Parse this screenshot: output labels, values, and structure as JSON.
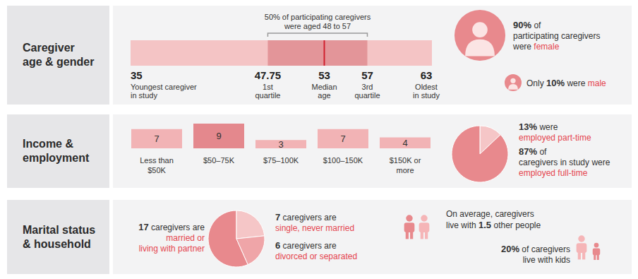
{
  "sections": [
    "Caregiver\nage & gender",
    "Income &\nemployment",
    "Marital status\n& household"
  ],
  "chart_data": [
    {
      "type": "boxplot",
      "values": [
        35,
        47.75,
        53,
        57,
        63
      ],
      "categories": [
        "Youngest caregiver\nin study",
        "1st\nquartile",
        "Median\nage",
        "3rd\nquartile",
        "Oldest\nin study"
      ],
      "annotation": "50% of participating caregivers\nwere aged 48 to 57",
      "xlim": [
        35,
        63
      ],
      "tick_labels": false,
      "colors": [
        "#f4c4c5",
        "#e39599",
        "#d0202e"
      ]
    },
    {
      "type": "pictogram",
      "categories": [
        "female",
        "male"
      ],
      "values": [
        90,
        10
      ],
      "value_labels": [
        "90%",
        "10%"
      ],
      "text_before": [
        null,
        "Only"
      ],
      "text_after": [
        "of\nparticipating caregivers\nwere",
        "were"
      ],
      "color": "#e8898d"
    },
    {
      "type": "bar",
      "categories": [
        "Less than\n$50K",
        "$50–75K",
        "$75–100K",
        "$100–150K",
        "$150K or\nmore"
      ],
      "values": [
        7,
        9,
        3,
        7,
        4
      ],
      "colors": [
        "#f2b3b5",
        "#e4888d",
        "#f2b3b5",
        "#f2b3b5",
        "#f2b3b5"
      ],
      "ylim": [
        0,
        9
      ],
      "data_labels": true,
      "tick_labels": "x"
    },
    {
      "type": "pie",
      "categories": [
        "employed part-time",
        "employed full-time"
      ],
      "values": [
        13,
        87
      ],
      "value_labels": [
        "13%",
        "87%"
      ],
      "text_after": [
        "were\n",
        "of\ncaregivers in study were\n"
      ],
      "colors": [
        "#f5c6c7",
        "#e8898d"
      ]
    },
    {
      "type": "pie",
      "categories": [
        "married or\nliving with partner",
        "single, never married",
        "divorced or separated"
      ],
      "values": [
        17,
        7,
        6
      ],
      "text_after": [
        "caregivers are\n",
        "caregivers are\n",
        "caregivers are\n"
      ],
      "colors": [
        "#e8898d",
        "#f5c6c7",
        "#efa5a8"
      ]
    }
  ],
  "household": [
    [
      {
        "text": "On average, caregivers\nlive with"
      },
      {
        "text": "1.5",
        "style": "bold"
      },
      {
        "text": "other people"
      }
    ],
    [
      {
        "text": "20%",
        "style": "bold"
      },
      {
        "text": "of caregivers\nlive with kids"
      }
    ]
  ]
}
